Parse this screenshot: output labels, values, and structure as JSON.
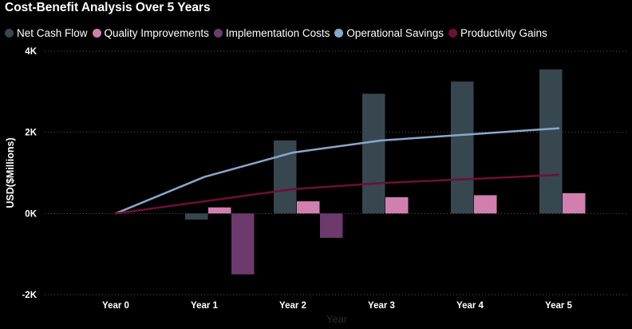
{
  "chart_data": {
    "type": "bar",
    "title": "Cost-Benefit Analysis Over 5 Years",
    "xlabel": "Year",
    "ylabel": "USD($Millions)",
    "categories": [
      "Year 0",
      "Year 1",
      "Year 2",
      "Year 3",
      "Year 4",
      "Year 5"
    ],
    "ylim": [
      -2000,
      4000
    ],
    "yticks": [
      -2000,
      0,
      2000,
      4000
    ],
    "ytick_labels": [
      "-2K",
      "0K",
      "2K",
      "4K"
    ],
    "grid": true,
    "legend_position": "top-left",
    "series": [
      {
        "name": "Net Cash Flow",
        "kind": "bar",
        "color": "#37474f",
        "values": [
          0,
          -150,
          1800,
          2950,
          3250,
          3550
        ]
      },
      {
        "name": "Quality Improvements",
        "kind": "bar",
        "color": "#d17fae",
        "values": [
          0,
          150,
          300,
          400,
          450,
          500
        ]
      },
      {
        "name": "Implementation Costs",
        "kind": "bar",
        "color": "#6c3a6d",
        "values": [
          0,
          -1500,
          -600,
          0,
          0,
          0
        ]
      },
      {
        "name": "Operational Savings",
        "kind": "line",
        "color": "#87a9cb",
        "values": [
          0,
          900,
          1500,
          1800,
          1950,
          2100
        ]
      },
      {
        "name": "Productivity Gains",
        "kind": "line",
        "color": "#6e0e3a",
        "values": [
          0,
          300,
          600,
          750,
          850,
          950
        ]
      }
    ]
  }
}
